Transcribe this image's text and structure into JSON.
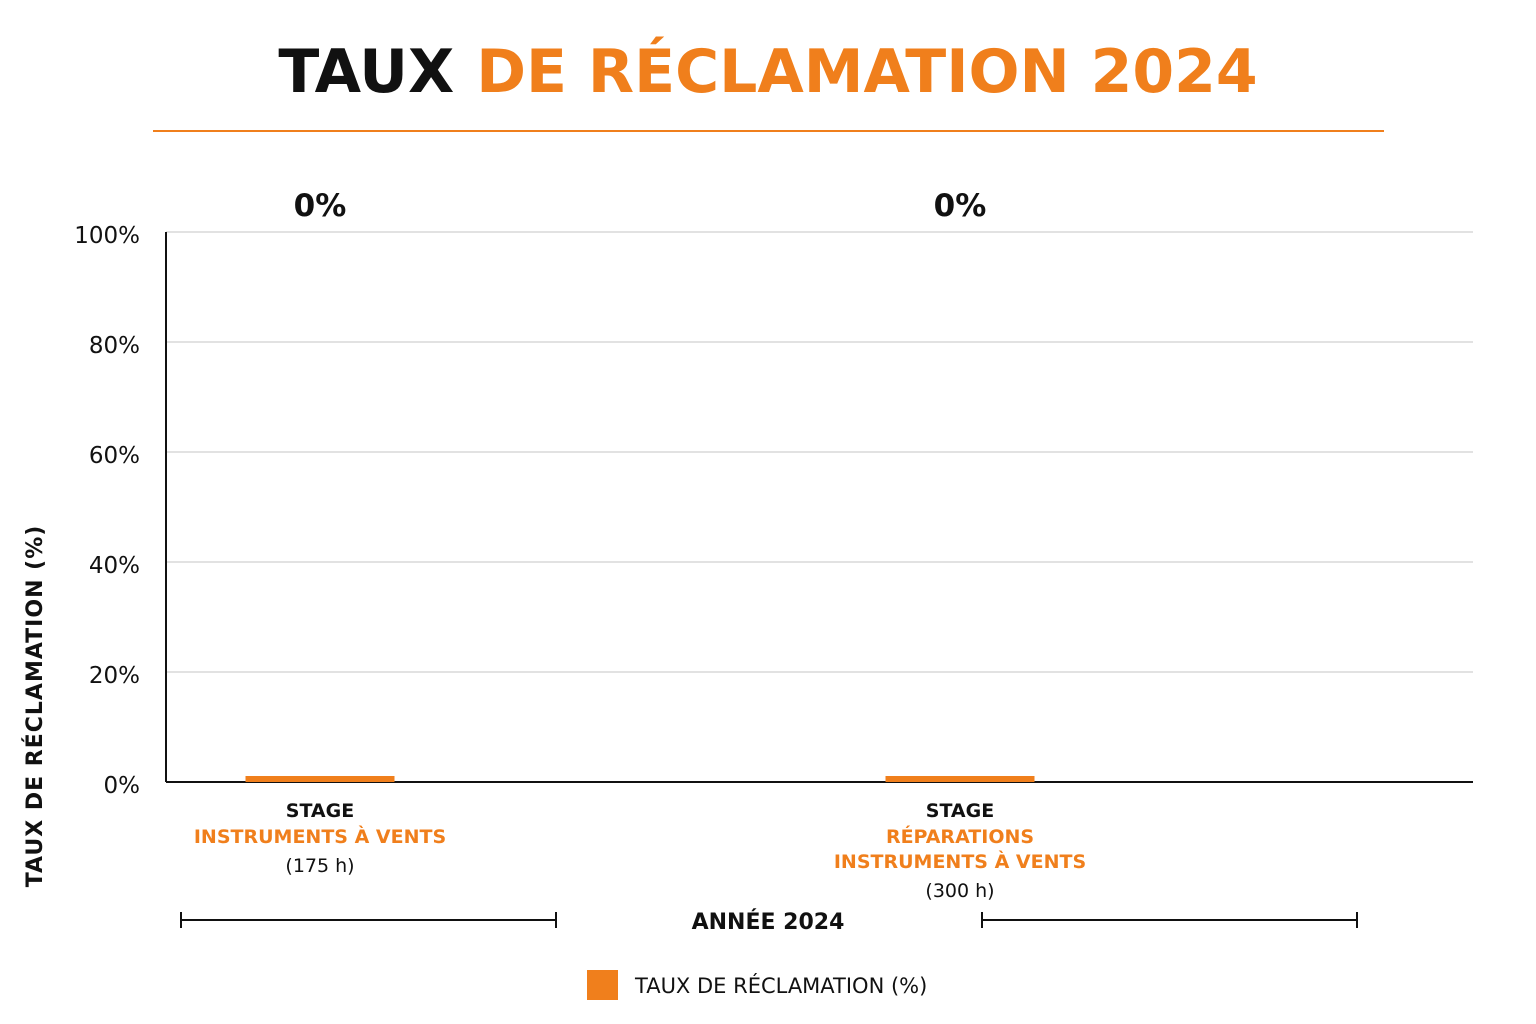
{
  "colors": {
    "accent": "#f07f1c",
    "text": "#111111",
    "grid": "#c4c4c4",
    "axis": "#111111"
  },
  "title": {
    "part1": "TAUX",
    "part2": "DE RÉCLAMATION 2024"
  },
  "chart_data": {
    "type": "bar",
    "title": "TAUX DE RÉCLAMATION 2024",
    "ylabel": "TAUX DE RÉCLAMATION (%)",
    "xlabel": "ANNÉE 2024",
    "ylim": [
      0,
      100
    ],
    "yticks": [
      "0%",
      "20%",
      "40%",
      "60%",
      "80%",
      "100%"
    ],
    "grid": true,
    "legend_position": "bottom-center",
    "categories": [
      {
        "line1": "STAGE",
        "line2": "INSTRUMENTS À VENTS",
        "line3": "",
        "hours": "(175 h)"
      },
      {
        "line1": "STAGE",
        "line2": "RÉPARATIONS",
        "line3": "INSTRUMENTS À VENTS",
        "hours": "(300 h)"
      }
    ],
    "series": [
      {
        "name": "TAUX DE RÉCLAMATION (%)",
        "values": [
          0,
          0
        ]
      }
    ],
    "value_labels": [
      "0%",
      "0%"
    ]
  }
}
